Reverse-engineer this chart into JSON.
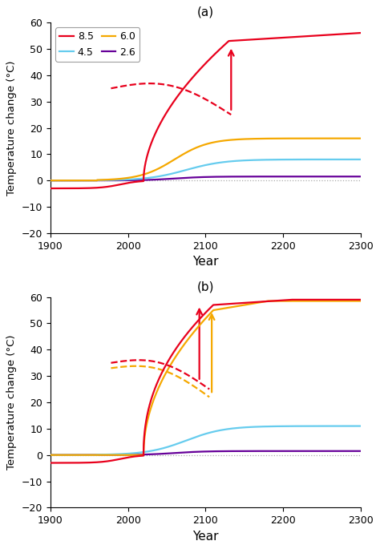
{
  "xlim": [
    1900,
    2300
  ],
  "ylim": [
    -20,
    60
  ],
  "yticks": [
    -20,
    -10,
    0,
    10,
    20,
    30,
    40,
    50,
    60
  ],
  "xticks": [
    1900,
    2000,
    2100,
    2200,
    2300
  ],
  "ylabel": "Temperature change (°C)",
  "xlabel": "Year",
  "colors": {
    "rcp85": "#e8001c",
    "rcp60": "#f5a800",
    "rcp45": "#66ccee",
    "rcp26": "#660099"
  },
  "panel_a_label": "(a)",
  "panel_b_label": "(b)",
  "dotted_zero_color": "#aaaaaa",
  "figsize": [
    4.74,
    6.85
  ],
  "dpi": 100
}
